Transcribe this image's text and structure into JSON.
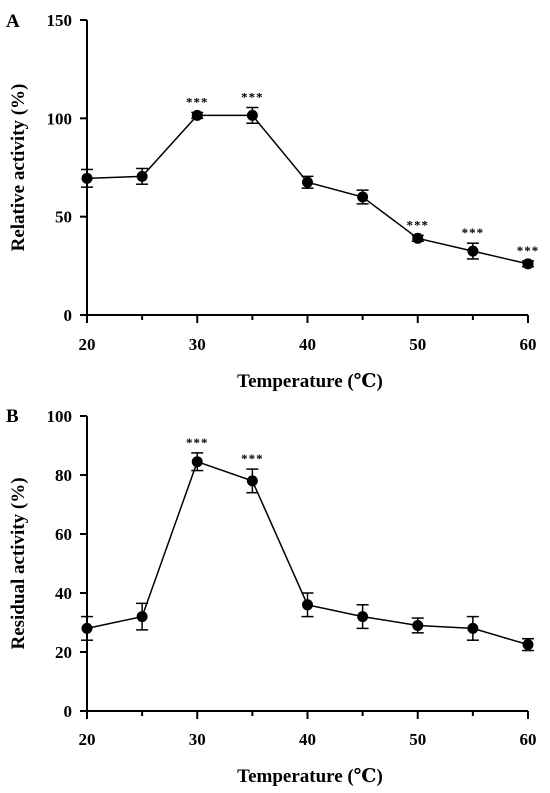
{
  "chart_data": [
    {
      "type": "line",
      "panel_label": "A",
      "xlabel": "Temperature (℃)",
      "ylabel": "Relative activity (%)",
      "x": [
        20,
        25,
        30,
        35,
        40,
        45,
        50,
        55,
        60
      ],
      "xlim": [
        20,
        60
      ],
      "ylim": [
        0,
        150
      ],
      "xticks": [
        "20",
        "30",
        "40",
        "50",
        "60"
      ],
      "yticks": [
        "0",
        "50",
        "100",
        "150"
      ],
      "series": [
        {
          "values": [
            69.5,
            70.5,
            101.5,
            101.5,
            67.5,
            60,
            39,
            32.5,
            26
          ],
          "errors": [
            4.5,
            4,
            1.5,
            4,
            3,
            3.5,
            1.5,
            4,
            1.5
          ]
        }
      ],
      "significance": [
        {
          "x": 30,
          "label": "***"
        },
        {
          "x": 35,
          "label": "***"
        },
        {
          "x": 50,
          "label": "***"
        },
        {
          "x": 55,
          "label": "***"
        },
        {
          "x": 60,
          "label": "***"
        }
      ],
      "grid": false
    },
    {
      "type": "line",
      "panel_label": "B",
      "xlabel": "Temperature (℃)",
      "ylabel": "Residual activity (%)",
      "x": [
        20,
        25,
        30,
        35,
        40,
        45,
        50,
        55,
        60
      ],
      "xlim": [
        20,
        60
      ],
      "ylim": [
        0,
        100
      ],
      "xticks": [
        "20",
        "30",
        "40",
        "50",
        "60"
      ],
      "yticks": [
        "0",
        "20",
        "40",
        "60",
        "80",
        "100"
      ],
      "series": [
        {
          "values": [
            28,
            32,
            84.5,
            78,
            36,
            32,
            29,
            28,
            22.5
          ],
          "errors": [
            4,
            4.5,
            3,
            4,
            4,
            4,
            2.5,
            4,
            2
          ]
        }
      ],
      "significance": [
        {
          "x": 30,
          "label": "***"
        },
        {
          "x": 35,
          "label": "***"
        }
      ],
      "grid": false
    }
  ]
}
